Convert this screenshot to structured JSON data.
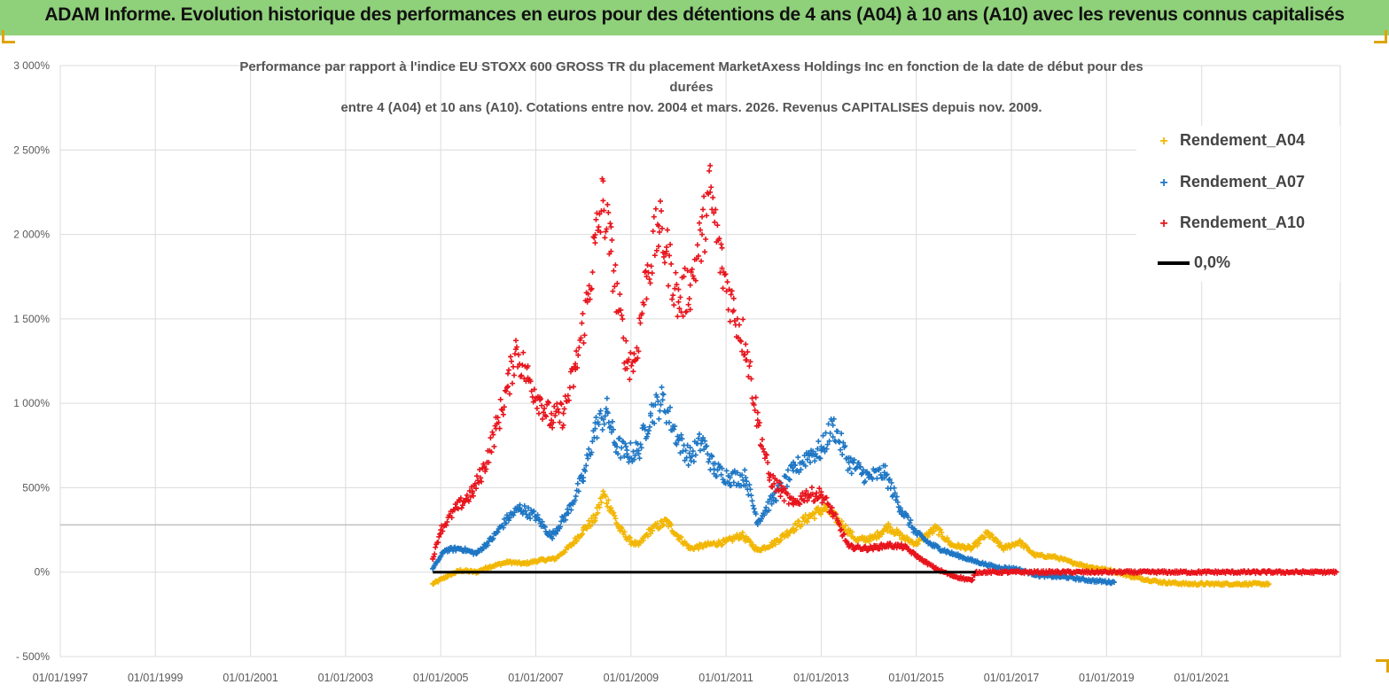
{
  "header": {
    "title": "ADAM Informe. Evolution historique des performances en euros pour des détentions de 4 ans (A04) à 10 ans (A10) avec les revenus connus capitalisés"
  },
  "chart_data": {
    "type": "scatter",
    "title_lines": [
      "Performance par rapport à l'indice EU STOXX 600 GROSS TR  du placement MarketAxess Holdings Inc en fonction de la date de début pour des",
      "durées",
      "entre 4 (A04) et 10 ans (A10). Cotations entre nov. 2004 et mars. 2026. Revenus CAPITALISES depuis nov. 2009."
    ],
    "xlabel": "",
    "ylabel": "",
    "x_range": [
      "1997-01-01",
      "2023-12-01"
    ],
    "ylim": [
      -500,
      3000
    ],
    "y_ticks": [
      -500,
      0,
      500,
      1000,
      1500,
      2000,
      2500,
      3000
    ],
    "y_tick_labels": [
      "- 500%",
      "0%",
      "500%",
      "1 000%",
      "1 500%",
      "2 000%",
      "2 500%",
      "3 000%"
    ],
    "x_ticks": [
      "1997-01-01",
      "1999-01-01",
      "2001-01-01",
      "2003-01-01",
      "2005-01-01",
      "2007-01-01",
      "2009-01-01",
      "2011-01-01",
      "2013-01-01",
      "2015-01-01",
      "2017-01-01",
      "2019-01-01",
      "2021-01-01"
    ],
    "x_tick_labels": [
      "01/01/1997",
      "01/01/1999",
      "01/01/2001",
      "01/01/2003",
      "01/01/2005",
      "01/01/2007",
      "01/01/2009",
      "01/01/2011",
      "01/01/2013",
      "01/01/2015",
      "01/01/2017",
      "01/01/2019",
      "01/01/2021"
    ],
    "grid": true,
    "reference_hline": 280,
    "legend_position": "top-right",
    "series": [
      {
        "name": "Rendement_A04",
        "color": "#f2b705",
        "marker": "+",
        "points": [
          [
            "2004-11-01",
            -70
          ],
          [
            "2005-03-01",
            -20
          ],
          [
            "2005-06-01",
            10
          ],
          [
            "2005-10-01",
            0
          ],
          [
            "2006-01-01",
            30
          ],
          [
            "2006-06-01",
            60
          ],
          [
            "2006-10-01",
            50
          ],
          [
            "2007-02-01",
            70
          ],
          [
            "2007-06-01",
            80
          ],
          [
            "2007-10-01",
            160
          ],
          [
            "2008-01-01",
            250
          ],
          [
            "2008-04-01",
            320
          ],
          [
            "2008-06-01",
            460
          ],
          [
            "2008-08-01",
            380
          ],
          [
            "2008-10-01",
            260
          ],
          [
            "2009-01-01",
            180
          ],
          [
            "2009-03-01",
            160
          ],
          [
            "2009-06-01",
            250
          ],
          [
            "2009-10-01",
            300
          ],
          [
            "2010-01-01",
            210
          ],
          [
            "2010-04-01",
            140
          ],
          [
            "2010-08-01",
            160
          ],
          [
            "2011-01-01",
            180
          ],
          [
            "2011-05-01",
            220
          ],
          [
            "2011-09-01",
            130
          ],
          [
            "2012-01-01",
            170
          ],
          [
            "2012-06-01",
            260
          ],
          [
            "2012-10-01",
            330
          ],
          [
            "2013-02-01",
            380
          ],
          [
            "2013-06-01",
            290
          ],
          [
            "2013-10-01",
            190
          ],
          [
            "2014-02-01",
            200
          ],
          [
            "2014-06-01",
            270
          ],
          [
            "2014-10-01",
            200
          ],
          [
            "2015-01-01",
            170
          ],
          [
            "2015-06-01",
            260
          ],
          [
            "2015-10-01",
            160
          ],
          [
            "2016-03-01",
            140
          ],
          [
            "2016-07-01",
            230
          ],
          [
            "2016-11-01",
            140
          ],
          [
            "2017-03-01",
            180
          ],
          [
            "2017-07-01",
            100
          ],
          [
            "2017-12-01",
            90
          ],
          [
            "2018-04-01",
            60
          ],
          [
            "2018-09-01",
            30
          ],
          [
            "2019-02-01",
            10
          ],
          [
            "2019-08-01",
            -30
          ],
          [
            "2020-03-01",
            -60
          ],
          [
            "2020-10-01",
            -70
          ],
          [
            "2021-06-01",
            -70
          ],
          [
            "2022-01-01",
            -70
          ],
          [
            "2022-06-01",
            -70
          ]
        ]
      },
      {
        "name": "Rendement_A07",
        "color": "#1f77c4",
        "marker": "+",
        "points": [
          [
            "2004-11-01",
            20
          ],
          [
            "2005-02-01",
            130
          ],
          [
            "2005-06-01",
            140
          ],
          [
            "2005-10-01",
            110
          ],
          [
            "2006-02-01",
            200
          ],
          [
            "2006-06-01",
            320
          ],
          [
            "2006-09-01",
            380
          ],
          [
            "2007-01-01",
            330
          ],
          [
            "2007-05-01",
            210
          ],
          [
            "2007-09-01",
            350
          ],
          [
            "2008-01-01",
            560
          ],
          [
            "2008-04-01",
            850
          ],
          [
            "2008-07-01",
            950
          ],
          [
            "2008-09-01",
            760
          ],
          [
            "2008-12-01",
            700
          ],
          [
            "2009-03-01",
            720
          ],
          [
            "2009-06-01",
            940
          ],
          [
            "2009-09-01",
            1020
          ],
          [
            "2010-01-01",
            780
          ],
          [
            "2010-04-01",
            680
          ],
          [
            "2010-07-01",
            780
          ],
          [
            "2010-10-01",
            610
          ],
          [
            "2011-02-01",
            560
          ],
          [
            "2011-06-01",
            560
          ],
          [
            "2011-09-01",
            300
          ],
          [
            "2012-01-01",
            440
          ],
          [
            "2012-06-01",
            600
          ],
          [
            "2012-10-01",
            700
          ],
          [
            "2013-01-01",
            720
          ],
          [
            "2013-04-01",
            870
          ],
          [
            "2013-08-01",
            650
          ],
          [
            "2014-01-01",
            560
          ],
          [
            "2014-05-01",
            590
          ],
          [
            "2014-09-01",
            380
          ],
          [
            "2015-01-01",
            230
          ],
          [
            "2015-05-01",
            160
          ],
          [
            "2015-10-01",
            110
          ],
          [
            "2016-03-01",
            70
          ],
          [
            "2016-09-01",
            30
          ],
          [
            "2017-02-01",
            20
          ],
          [
            "2017-08-01",
            -20
          ],
          [
            "2018-03-01",
            -30
          ],
          [
            "2018-09-01",
            -50
          ],
          [
            "2019-03-01",
            -60
          ]
        ]
      },
      {
        "name": "Rendement_A10",
        "color": "#e8141c",
        "marker": "+",
        "points": [
          [
            "2004-11-01",
            80
          ],
          [
            "2005-01-01",
            250
          ],
          [
            "2005-05-01",
            380
          ],
          [
            "2005-09-01",
            470
          ],
          [
            "2005-12-01",
            620
          ],
          [
            "2006-03-01",
            850
          ],
          [
            "2006-06-01",
            1100
          ],
          [
            "2006-08-01",
            1320
          ],
          [
            "2006-11-01",
            1150
          ],
          [
            "2007-02-01",
            1020
          ],
          [
            "2007-05-01",
            900
          ],
          [
            "2007-08-01",
            940
          ],
          [
            "2007-11-01",
            1200
          ],
          [
            "2008-02-01",
            1600
          ],
          [
            "2008-04-01",
            1950
          ],
          [
            "2008-06-01",
            2200
          ],
          [
            "2008-08-01",
            1900
          ],
          [
            "2008-10-01",
            1550
          ],
          [
            "2008-12-01",
            1250
          ],
          [
            "2009-02-01",
            1250
          ],
          [
            "2009-05-01",
            1750
          ],
          [
            "2009-08-01",
            2050
          ],
          [
            "2009-10-01",
            1900
          ],
          [
            "2010-01-01",
            1600
          ],
          [
            "2010-04-01",
            1700
          ],
          [
            "2010-07-01",
            2000
          ],
          [
            "2010-09-01",
            2250
          ],
          [
            "2010-12-01",
            1800
          ],
          [
            "2011-03-01",
            1550
          ],
          [
            "2011-06-01",
            1350
          ],
          [
            "2011-09-01",
            900
          ],
          [
            "2011-12-01",
            560
          ],
          [
            "2012-03-01",
            480
          ],
          [
            "2012-06-01",
            400
          ],
          [
            "2012-09-01",
            460
          ],
          [
            "2013-01-01",
            460
          ],
          [
            "2013-04-01",
            350
          ],
          [
            "2013-08-01",
            150
          ],
          [
            "2014-01-01",
            140
          ],
          [
            "2014-06-01",
            160
          ],
          [
            "2014-10-01",
            150
          ],
          [
            "2015-02-01",
            80
          ],
          [
            "2015-06-01",
            20
          ],
          [
            "2015-10-01",
            -20
          ],
          [
            "2016-03-01",
            -50
          ],
          [
            "2016-04-01",
            0
          ],
          [
            "2018-01-01",
            0
          ],
          [
            "2020-01-01",
            0
          ],
          [
            "2022-01-01",
            0
          ],
          [
            "2023-11-01",
            0
          ]
        ]
      },
      {
        "name": "0,0%",
        "color": "#000000",
        "type": "line",
        "points": [
          [
            "2004-11-01",
            0
          ],
          [
            "2016-04-01",
            0
          ]
        ]
      }
    ]
  }
}
